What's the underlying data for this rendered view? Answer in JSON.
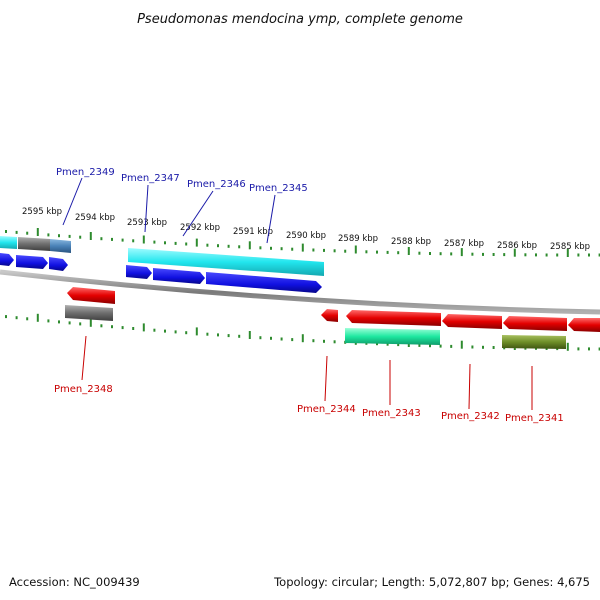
{
  "title": "Pseudomonas mendocina ymp, complete genome",
  "footer": {
    "accession": "Accession: NC_009439",
    "summary": "Topology: circular; Length: 5,072,807 bp; Genes: 4,675"
  },
  "scale_labels": [
    "2595 kbp",
    "2594 kbp",
    "2593 kbp",
    "2592 kbp",
    "2591 kbp",
    "2590 kbp",
    "2589 kbp",
    "2588 kbp",
    "2587 kbp",
    "2586 kbp",
    "2585 kbp"
  ],
  "gene_labels_top": [
    "Pmen_2349",
    "Pmen_2347",
    "Pmen_2346",
    "Pmen_2345"
  ],
  "gene_labels_bottom": [
    "Pmen_2348",
    "Pmen_2344",
    "Pmen_2343",
    "Pmen_2342",
    "Pmen_2341"
  ],
  "colors": {
    "backbone": "#8a8a8a",
    "tick": "#2e8b2e",
    "gene_blue": "#1010e0",
    "gene_cyan": "#22e6ee",
    "gene_red": "#e40000",
    "gene_teal": "#1ee8a0",
    "gene_gray": "#6e6e6e",
    "gene_steelblue": "#4a82b8",
    "gene_olive": "#6e8e28",
    "label_top": "#1a1aa8",
    "label_bottom": "#c80000"
  }
}
